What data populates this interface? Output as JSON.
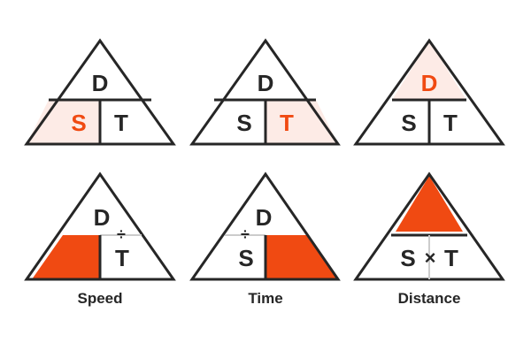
{
  "colors": {
    "accent": "#f04a12",
    "accent_tint": "#fdebe6",
    "ink": "#262626",
    "divider_faint": "#cccccc",
    "background": "#ffffff"
  },
  "letters": {
    "distance": "D",
    "speed": "S",
    "time": "T"
  },
  "operators": {
    "divide": "÷",
    "multiply": "×"
  },
  "top_row": [
    {
      "highlight": "speed"
    },
    {
      "highlight": "time"
    },
    {
      "highlight": "distance"
    }
  ],
  "formulas": [
    {
      "name": "speed",
      "label": "Speed",
      "shows": "D ÷ T",
      "filled": "speed"
    },
    {
      "name": "time",
      "label": "Time",
      "shows": "D ÷ S",
      "filled": "time"
    },
    {
      "name": "distance",
      "label": "Distance",
      "shows": "S × T",
      "filled": "distance"
    }
  ]
}
